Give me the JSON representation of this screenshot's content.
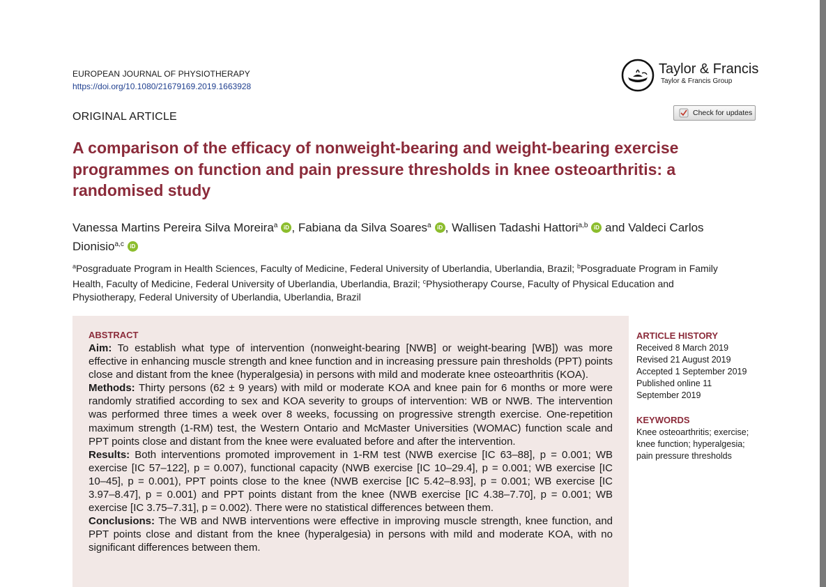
{
  "header": {
    "journal": "EUROPEAN JOURNAL OF PHYSIOTHERAPY",
    "doi": "https://doi.org/10.1080/21679169.2019.1663928",
    "publisher": "Taylor & Francis",
    "publisher_group": "Taylor & Francis Group",
    "check_updates": "Check for updates"
  },
  "article_type": "ORIGINAL ARTICLE",
  "title": "A comparison of the efficacy of nonweight-bearing and weight-bearing exercise programmes on function and pain pressure thresholds in knee osteoarthritis: a randomised study",
  "authors": [
    {
      "name": "Vanessa Martins Pereira Silva Moreira",
      "sup": "a",
      "sep": ", "
    },
    {
      "name": "Fabiana da Silva Soares",
      "sup": "a",
      "sep": ", "
    },
    {
      "name": "Wallisen Tadashi Hattori",
      "sup": "a,b",
      "sep": " and "
    },
    {
      "name": "Valdeci Carlos Dionisio",
      "sup": "a,c",
      "sep": ""
    }
  ],
  "orcid_label": "iD",
  "affiliations": [
    {
      "sup": "a",
      "text": "Posgraduate Program in Health Sciences, Faculty of Medicine, Federal University of Uberlandia, Uberlandia, Brazil; "
    },
    {
      "sup": "b",
      "text": "Posgraduate Program in Family Health, Faculty of Medicine, Federal University of Uberlandia, Uberlandia, Brazil; "
    },
    {
      "sup": "c",
      "text": "Physiotherapy Course, Faculty of Physical Education and Physiotherapy, Federal University of Uberlandia, Uberlandia, Brazil"
    }
  ],
  "abstract": {
    "heading": "ABSTRACT",
    "aim_label": "Aim:",
    "aim": " To establish what type of intervention (nonweight-bearing [NWB] or weight-bearing [WB]) was more effective in enhancing muscle strength and knee function and in increasing pressure pain thresholds (PPT) points close and distant from the knee (hyperalgesia) in persons with mild and moderate knee osteoarthritis (KOA).",
    "methods_label": "Methods:",
    "methods": " Thirty persons (62 ± 9 years) with mild or moderate KOA and knee pain for 6 months or more were randomly stratified according to sex and KOA severity to groups of intervention: WB or NWB. The intervention was performed three times a week over 8 weeks, focussing on progressive strength exercise. One-repetition maximum strength (1-RM) test, the Western Ontario and McMaster Universities (WOMAC) function scale and PPT points close and distant from the knee were evaluated before and after the intervention.",
    "results_label": "Results:",
    "results": " Both interventions promoted improvement in 1-RM test (NWB exercise [IC 63–88], p = 0.001; WB exercise [IC 57–122], p = 0.007), functional capacity (NWB exercise [IC 10–29.4], p = 0.001; WB exercise [IC 10–45], p = 0.001), PPT points close to the knee (NWB exercise [IC 5.42–8.93], p = 0.001; WB exercise [IC 3.97–8.47], p = 0.001) and PPT points distant from the knee (NWB exercise [IC 4.38–7.70], p = 0.001; WB exercise [IC 3.75–7.31], p = 0.002). There were no statistical differences between them.",
    "conclusions_label": "Conclusions:",
    "conclusions": " The WB and NWB interventions were effective in improving muscle strength, knee function, and PPT points close and distant from the knee (hyperalgesia) in persons with mild and moderate KOA, with no significant differences between them."
  },
  "history": {
    "heading": "ARTICLE HISTORY",
    "received": "Received 8 March 2019",
    "revised": "Revised 21 August 2019",
    "accepted": "Accepted 1 September 2019",
    "published": "Published online 11 September 2019"
  },
  "keywords": {
    "heading": "KEYWORDS",
    "text": "Knee osteoarthritis; exercise; knee function; hyperalgesia; pain pressure thresholds"
  },
  "colors": {
    "accent": "#8b2b3a",
    "abstract_bg": "#f2e8e6",
    "orcid": "#8cbd2d",
    "doi_link": "#1f3f8f"
  }
}
